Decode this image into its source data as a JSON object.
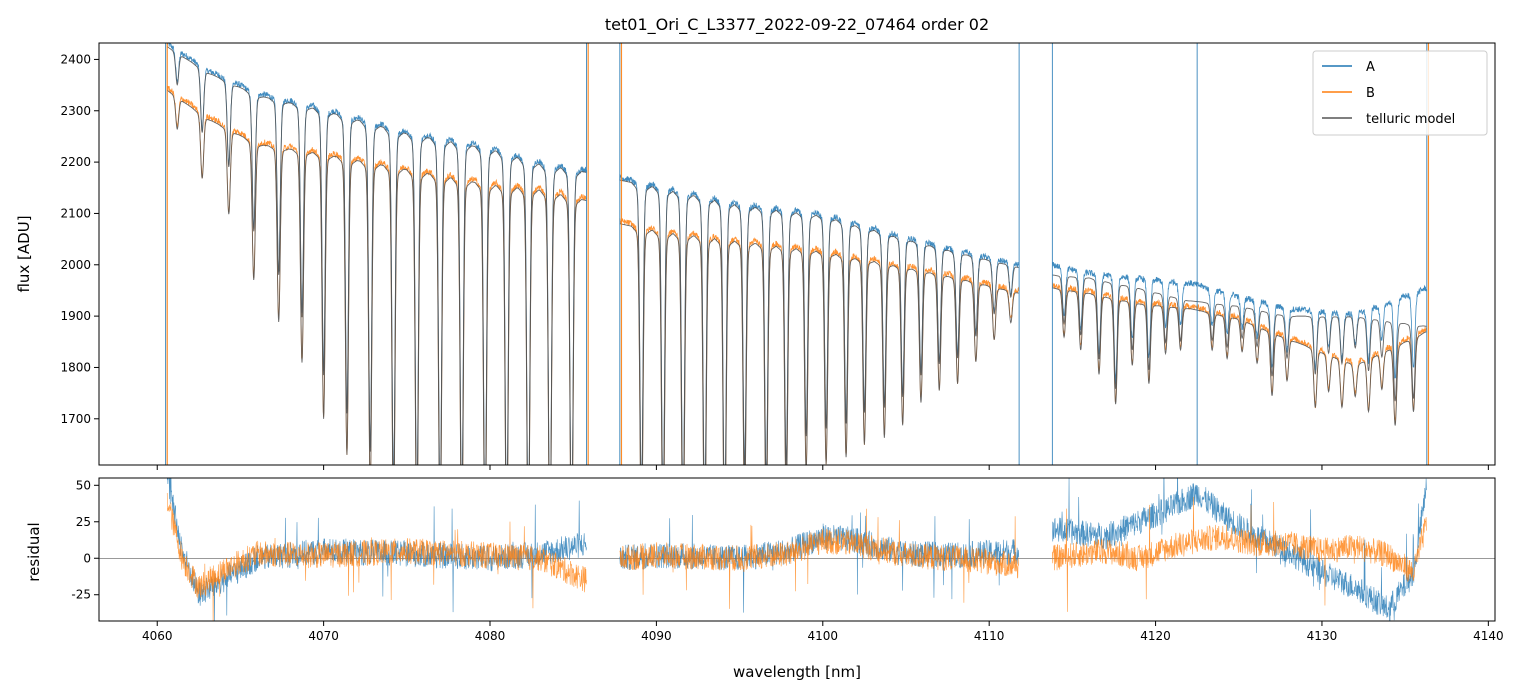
{
  "chart_data": [
    {
      "type": "line",
      "panel": "top",
      "title": "tet01_Ori_C_L3377_2022-09-22_07464  order 02",
      "ylabel": "flux [ADU]",
      "xlim": [
        4056.5,
        4140.4
      ],
      "ylim": [
        1610,
        2432
      ],
      "yticks": [
        1700,
        1800,
        1900,
        2000,
        2100,
        2200,
        2300,
        2400
      ],
      "xticks": [
        4060,
        4070,
        4080,
        4090,
        4100,
        4110,
        4120,
        4130,
        4140
      ],
      "grid": false,
      "legend_position": "top-right",
      "series": [
        {
          "name": "A",
          "color": "#1f77b4",
          "segments": [
            {
              "x": [
                4060.6,
                4063,
                4066,
                4070,
                4075,
                4080,
                4083,
                4085.8
              ],
              "y": [
                2432,
                2380,
                2335,
                2305,
                2260,
                2230,
                2200,
                2185
              ]
            },
            {
              "x": [
                4087.8,
                4090,
                4095,
                4100,
                4105,
                4108,
                4111.8
              ],
              "y": [
                2170,
                2155,
                2120,
                2100,
                2055,
                2030,
                2000
              ]
            },
            {
              "x": [
                4113.8,
                4116,
                4119,
                4122,
                4125,
                4128,
                4132,
                4136.3
              ],
              "y": [
                2000,
                1985,
                1975,
                1965,
                1940,
                1915,
                1905,
                1955
              ]
            }
          ],
          "spikes_x": [
            4060.5,
            4085.8,
            4087.8,
            4111.8,
            4113.8,
            4122.5,
            4136.3
          ]
        },
        {
          "name": "B",
          "color": "#ff7f0e",
          "segments": [
            {
              "x": [
                4060.6,
                4063,
                4066,
                4070,
                4075,
                4080,
                4083,
                4085.8
              ],
              "y": [
                2345,
                2290,
                2240,
                2220,
                2190,
                2160,
                2150,
                2130
              ]
            },
            {
              "x": [
                4087.8,
                4090,
                4095,
                4100,
                4105,
                4108,
                4111.8
              ],
              "y": [
                2085,
                2070,
                2050,
                2030,
                2000,
                1980,
                1950
              ]
            },
            {
              "x": [
                4113.8,
                4116,
                4119,
                4122,
                4125,
                4128,
                4132,
                4136.3
              ],
              "y": [
                1960,
                1950,
                1930,
                1920,
                1900,
                1860,
                1810,
                1875
              ]
            }
          ],
          "spikes_x": [
            4060.6,
            4085.9,
            4087.9,
            4136.4
          ]
        },
        {
          "name": "telluric model",
          "color": "#555555",
          "segments": [
            {
              "x": [
                4060.6,
                4063,
                4066,
                4070,
                4075,
                4080,
                4083,
                4085.8
              ],
              "y": [
                2425,
                2375,
                2330,
                2300,
                2255,
                2225,
                2195,
                2180
              ]
            },
            {
              "x": [
                4087.8,
                4090,
                4095,
                4100,
                4105,
                4108,
                4111.8
              ],
              "y": [
                2165,
                2150,
                2115,
                2095,
                2050,
                2025,
                1995
              ]
            },
            {
              "x": [
                4113.8,
                4116,
                4119,
                4122,
                4125,
                4128,
                4132,
                4136.3
              ],
              "y": [
                1980,
                1975,
                1955,
                1930,
                1920,
                1900,
                1900,
                1880
              ]
            }
          ],
          "segments_b": [
            {
              "x": [
                4060.6,
                4063,
                4066,
                4070,
                4075,
                4080,
                4083,
                4085.8
              ],
              "y": [
                2340,
                2285,
                2235,
                2215,
                2185,
                2155,
                2145,
                2125
              ]
            },
            {
              "x": [
                4087.8,
                4090,
                4095,
                4100,
                4105,
                4108,
                4111.8
              ],
              "y": [
                2080,
                2065,
                2045,
                2025,
                1995,
                1975,
                1945
              ]
            },
            {
              "x": [
                4113.8,
                4116,
                4119,
                4122,
                4125,
                4128,
                4132,
                4136.3
              ],
              "y": [
                1955,
                1945,
                1925,
                1915,
                1895,
                1855,
                1805,
                1870
              ]
            }
          ]
        }
      ],
      "absorption_lines": [
        {
          "x": 4061.2,
          "depth": 60
        },
        {
          "x": 4062.7,
          "depth": 120
        },
        {
          "x": 4064.3,
          "depth": 160
        },
        {
          "x": 4065.8,
          "depth": 260
        },
        {
          "x": 4067.3,
          "depth": 330
        },
        {
          "x": 4068.7,
          "depth": 400
        },
        {
          "x": 4070.0,
          "depth": 500
        },
        {
          "x": 4071.4,
          "depth": 560
        },
        {
          "x": 4072.8,
          "depth": 620
        },
        {
          "x": 4074.2,
          "depth": 680
        },
        {
          "x": 4075.6,
          "depth": 700
        },
        {
          "x": 4077.0,
          "depth": 700
        },
        {
          "x": 4078.3,
          "depth": 700
        },
        {
          "x": 4079.7,
          "depth": 700
        },
        {
          "x": 4081.0,
          "depth": 700
        },
        {
          "x": 4082.3,
          "depth": 700
        },
        {
          "x": 4083.6,
          "depth": 700
        },
        {
          "x": 4084.9,
          "depth": 700
        },
        {
          "x": 4089.1,
          "depth": 600
        },
        {
          "x": 4090.4,
          "depth": 600
        },
        {
          "x": 4091.6,
          "depth": 600
        },
        {
          "x": 4092.9,
          "depth": 600
        },
        {
          "x": 4094.1,
          "depth": 600
        },
        {
          "x": 4095.3,
          "depth": 500
        },
        {
          "x": 4096.6,
          "depth": 520
        },
        {
          "x": 4097.8,
          "depth": 480
        },
        {
          "x": 4099.0,
          "depth": 420
        },
        {
          "x": 4100.2,
          "depth": 400
        },
        {
          "x": 4101.4,
          "depth": 380
        },
        {
          "x": 4102.5,
          "depth": 350
        },
        {
          "x": 4103.7,
          "depth": 330
        },
        {
          "x": 4104.8,
          "depth": 300
        },
        {
          "x": 4105.9,
          "depth": 250
        },
        {
          "x": 4107.0,
          "depth": 220
        },
        {
          "x": 4108.1,
          "depth": 200
        },
        {
          "x": 4109.2,
          "depth": 150
        },
        {
          "x": 4110.3,
          "depth": 100
        },
        {
          "x": 4111.3,
          "depth": 60
        },
        {
          "x": 4114.5,
          "depth": 90
        },
        {
          "x": 4115.5,
          "depth": 110
        },
        {
          "x": 4116.6,
          "depth": 150
        },
        {
          "x": 4117.6,
          "depth": 200
        },
        {
          "x": 4118.6,
          "depth": 120
        },
        {
          "x": 4119.6,
          "depth": 150
        },
        {
          "x": 4120.6,
          "depth": 90
        },
        {
          "x": 4121.5,
          "depth": 80
        },
        {
          "x": 4123.4,
          "depth": 70
        },
        {
          "x": 4124.3,
          "depth": 80
        },
        {
          "x": 4125.2,
          "depth": 60
        },
        {
          "x": 4126.1,
          "depth": 70
        },
        {
          "x": 4127.0,
          "depth": 120
        },
        {
          "x": 4127.9,
          "depth": 80
        },
        {
          "x": 4129.6,
          "depth": 110
        },
        {
          "x": 4130.4,
          "depth": 70
        },
        {
          "x": 4131.2,
          "depth": 90
        },
        {
          "x": 4132.0,
          "depth": 60
        },
        {
          "x": 4132.8,
          "depth": 100
        },
        {
          "x": 4133.6,
          "depth": 70
        },
        {
          "x": 4134.4,
          "depth": 150
        },
        {
          "x": 4135.5,
          "depth": 140
        }
      ]
    },
    {
      "type": "line",
      "panel": "bottom",
      "xlabel": "wavelength [nm]",
      "ylabel": "residual",
      "xlim": [
        4056.5,
        4140.4
      ],
      "ylim": [
        -43,
        55
      ],
      "yticks": [
        -25,
        0,
        25,
        50
      ],
      "xticks": [
        4060,
        4070,
        4080,
        4090,
        4100,
        4110,
        4120,
        4130,
        4140
      ],
      "zero_line": true,
      "series": [
        {
          "name": "A",
          "color": "#1f77b4",
          "segments": [
            {
              "x": [
                4060.6,
                4061.5,
                4062.5,
                4064,
                4066,
                4070,
                4075,
                4080,
                4083,
                4085.8
              ],
              "y": [
                55,
                5,
                -25,
                -15,
                0,
                5,
                3,
                0,
                3,
                10
              ]
            },
            {
              "x": [
                4087.8,
                4090,
                4095,
                4098,
                4100,
                4102,
                4105,
                4108,
                4111.8
              ],
              "y": [
                0,
                2,
                0,
                5,
                15,
                12,
                3,
                2,
                5
              ]
            },
            {
              "x": [
                4113.8,
                4115,
                4117,
                4119,
                4121,
                4122.5,
                4124,
                4126,
                4128,
                4130,
                4132,
                4134,
                4135.5,
                4136.3
              ],
              "y": [
                20,
                18,
                15,
                25,
                35,
                45,
                30,
                15,
                5,
                -10,
                -20,
                -35,
                -10,
                50
              ]
            }
          ]
        },
        {
          "name": "B",
          "color": "#ff7f0e",
          "segments": [
            {
              "x": [
                4060.6,
                4061.5,
                4062.5,
                4064,
                4066,
                4070,
                4075,
                4080,
                4083,
                4085.8
              ],
              "y": [
                40,
                0,
                -20,
                -8,
                3,
                2,
                5,
                2,
                0,
                -15
              ]
            },
            {
              "x": [
                4087.8,
                4090,
                4095,
                4098,
                4100,
                4102,
                4105,
                4108,
                4111.8
              ],
              "y": [
                0,
                2,
                0,
                3,
                12,
                10,
                2,
                0,
                -5
              ]
            },
            {
              "x": [
                4113.8,
                4115,
                4117,
                4119,
                4121,
                4122.5,
                4124,
                4126,
                4128,
                4130,
                4132,
                4134,
                4135.5,
                4136.3
              ],
              "y": [
                0,
                2,
                5,
                0,
                8,
                12,
                15,
                10,
                10,
                5,
                8,
                2,
                -10,
                25
              ]
            }
          ]
        }
      ]
    }
  ],
  "figure": {
    "legend": {
      "items": [
        {
          "label": "A",
          "color": "#1f77b4"
        },
        {
          "label": "B",
          "color": "#ff7f0e"
        },
        {
          "label": "telluric model",
          "color": "#555555"
        }
      ]
    }
  }
}
